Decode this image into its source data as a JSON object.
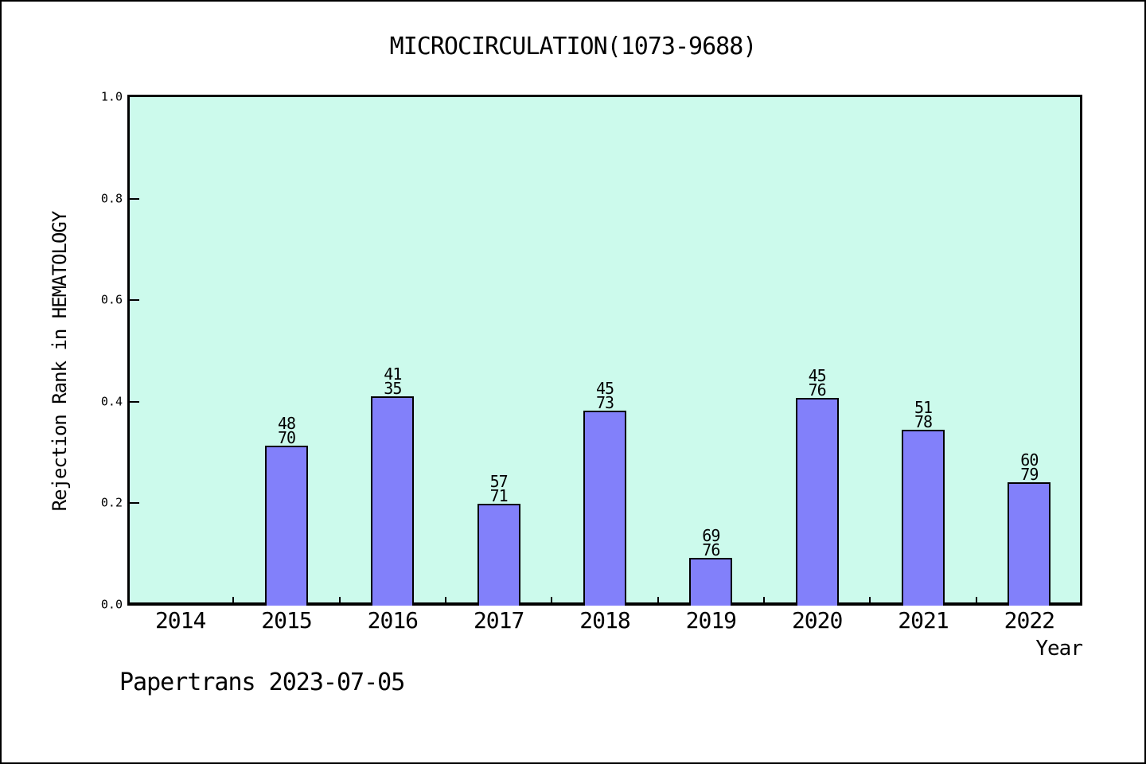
{
  "page": {
    "background_color": "#ffffff",
    "border_color": "#000000"
  },
  "chart_data": {
    "type": "bar",
    "title": "MICROCIRCULATION(1073-9688)",
    "xlabel": "Year",
    "ylabel": "Rejection Rank in HEMATOLOGY",
    "ylim": [
      0.0,
      1.0
    ],
    "ytick_labels": [
      "0.0",
      "0.2",
      "0.4",
      "0.6",
      "0.8",
      "1.0"
    ],
    "ytick_values": [
      0.0,
      0.2,
      0.4,
      0.6,
      0.8,
      1.0
    ],
    "grid": false,
    "legend": false,
    "plot_bg_color": "#ccfaec",
    "bar_fill_color": "#8280fa",
    "bar_border_color": "#000000",
    "categories": [
      "2014",
      "2015",
      "2016",
      "2017",
      "2018",
      "2019",
      "2020",
      "2021",
      "2022"
    ],
    "values": [
      null,
      0.314,
      0.41,
      0.199,
      0.382,
      0.093,
      0.407,
      0.345,
      0.241
    ],
    "bar_labels": [
      null,
      [
        "48",
        "70"
      ],
      [
        "41",
        "35"
      ],
      [
        "57",
        "71"
      ],
      [
        "45",
        "73"
      ],
      [
        "69",
        "76"
      ],
      [
        "45",
        "76"
      ],
      [
        "51",
        "78"
      ],
      [
        "60",
        "79"
      ]
    ]
  },
  "footer": {
    "text": "Papertrans 2023-07-05"
  }
}
